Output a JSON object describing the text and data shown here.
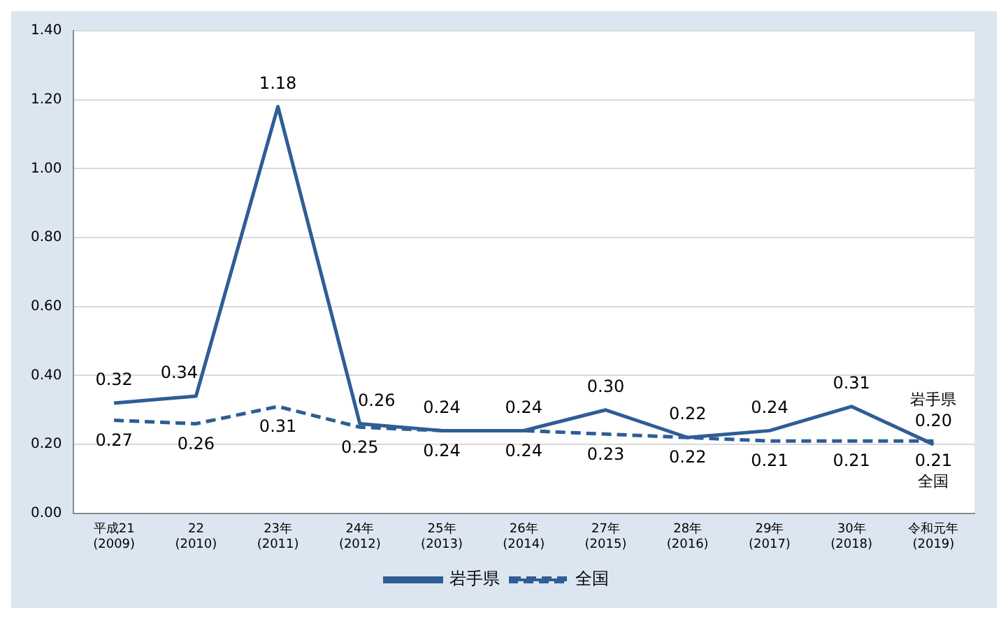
{
  "chart_data": {
    "type": "line",
    "categories": [
      "平成21\n(2009)",
      "22\n(2010)",
      "23年\n(2011)",
      "24年\n(2012)",
      "25年\n(2013)",
      "26年\n(2014)",
      "27年\n(2015)",
      "28年\n(2016)",
      "29年\n(2017)",
      "30年\n(2018)",
      "令和元年\n(2019)"
    ],
    "series": [
      {
        "name": "岩手県",
        "color": "#2f5d95",
        "line_style": "solid",
        "values": [
          0.32,
          0.34,
          1.18,
          0.26,
          0.24,
          0.24,
          0.3,
          0.22,
          0.24,
          0.31,
          0.2
        ],
        "value_labels": [
          "0.32",
          "0.34",
          "1.18",
          "0.26",
          "0.24",
          "0.24",
          "0.30",
          "0.22",
          "0.24",
          "0.31",
          "0.20"
        ]
      },
      {
        "name": "全国",
        "color": "#2f5d95",
        "line_style": "dashed",
        "values": [
          0.27,
          0.26,
          0.31,
          0.25,
          0.24,
          0.24,
          0.23,
          0.22,
          0.21,
          0.21,
          0.21
        ],
        "value_labels": [
          "0.27",
          "0.26",
          "0.31",
          "0.25",
          "0.24",
          "0.24",
          "0.23",
          "0.22",
          "0.21",
          "0.21",
          "0.21"
        ]
      }
    ],
    "ylim": [
      0,
      1.4
    ],
    "yticks": [
      {
        "value": 0,
        "label": "0.00"
      },
      {
        "value": 0.2,
        "label": "0.20"
      },
      {
        "value": 0.4,
        "label": "0.40"
      },
      {
        "value": 0.6,
        "label": "0.60"
      },
      {
        "value": 0.8,
        "label": "0.80"
      },
      {
        "value": 1.0,
        "label": "1.00"
      },
      {
        "value": 1.2,
        "label": "1.20"
      },
      {
        "value": 1.4,
        "label": "1.40"
      }
    ],
    "grid": "y",
    "legend": "bottom",
    "marker": "none"
  }
}
